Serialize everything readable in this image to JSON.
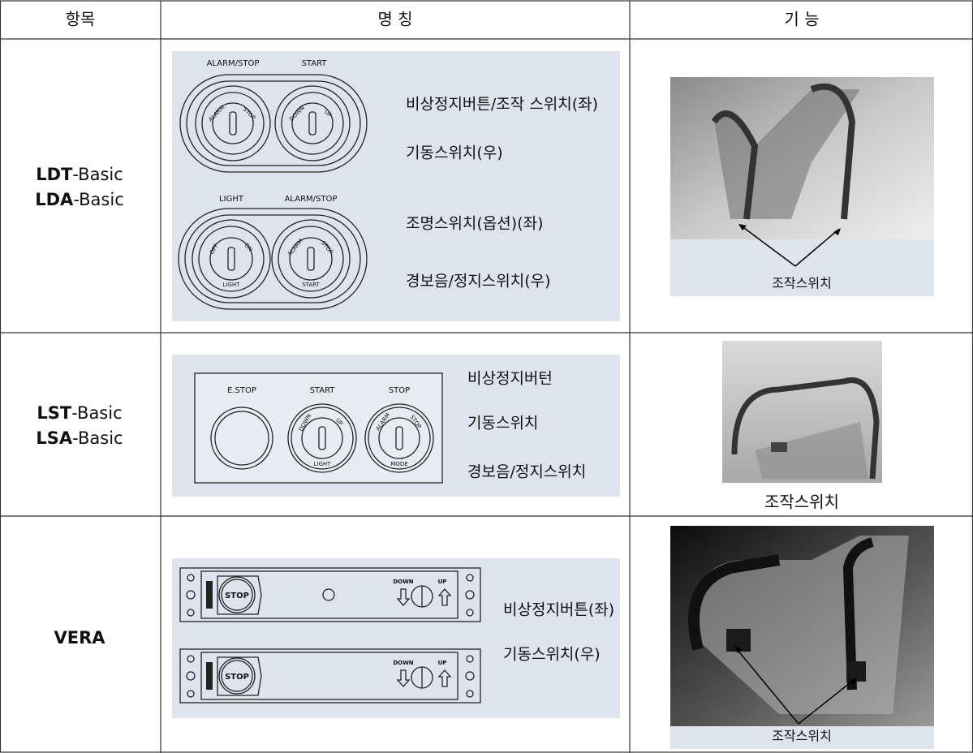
{
  "header": {
    "columns": [
      "항목",
      "명 칭",
      "기 능"
    ]
  },
  "rows": [
    {
      "items": [
        {
          "code": "LDT",
          "suffix": "-Basic"
        },
        {
          "code": "LDA",
          "suffix": "-Basic"
        }
      ],
      "panel_labels": [
        "ALARM/STOP",
        "START",
        "ALARM",
        "STOP",
        "DOWN",
        "UP",
        "LIGHT",
        "ALARM/STOP",
        "OFF",
        "ON",
        "LIGHT",
        "ALARM",
        "STOP",
        "START"
      ],
      "descriptions": [
        "비상정지버튼/조작 스위치(좌)",
        "기동스위치(우)",
        "조명스위치(옵션)(좌)",
        "경보음/정지스위치(우)"
      ],
      "caption": "조작스위치"
    },
    {
      "items": [
        {
          "code": "LST",
          "suffix": "-Basic"
        },
        {
          "code": "LSA",
          "suffix": "-Basic"
        }
      ],
      "panel_labels": [
        "E.STOP",
        "START",
        "STOP",
        "DOWN",
        "UP",
        "LIGHT",
        "ALARM",
        "STOP",
        "MODE"
      ],
      "descriptions": [
        "비상정지버턴",
        "기동스위치",
        "경보음/정지스위치"
      ],
      "caption": "조작스위치"
    },
    {
      "items": [
        {
          "code": "VERA"
        }
      ],
      "panel_labels": [
        "STOP",
        "DOWN",
        "UP",
        "STOP",
        "DOWN",
        "UP"
      ],
      "descriptions": [
        "비상정지버튼(좌)",
        "기동스위치(우)"
      ],
      "caption": "조작스위치"
    }
  ]
}
